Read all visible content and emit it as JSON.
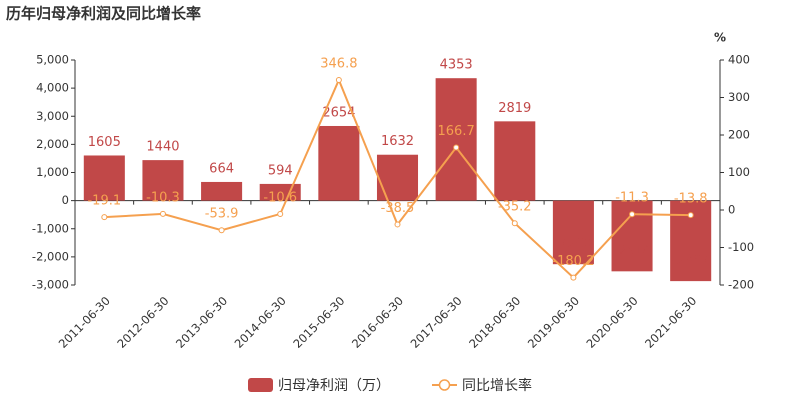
{
  "chart_data": {
    "type": "bar_line",
    "title": "历年归母净利润及同比增长率",
    "y2_label": "%",
    "categories": [
      "2011-06-30",
      "2012-06-30",
      "2013-06-30",
      "2014-06-30",
      "2015-06-30",
      "2016-06-30",
      "2017-06-30",
      "2018-06-30",
      "2019-06-30",
      "2020-06-30",
      "2021-06-30"
    ],
    "series": [
      {
        "name": "归母净利润（万）",
        "type": "bar",
        "color": "#c14848",
        "label_color": "#c14848",
        "values": [
          1605,
          1440,
          664,
          594,
          2654,
          1632,
          4353,
          2819,
          -2260,
          -2514,
          -2862
        ]
      },
      {
        "name": "同比增长率",
        "type": "line",
        "axis": "y2",
        "color": "#f5a04f",
        "label_color": "#f5a04f",
        "values": [
          -19.1,
          -10.3,
          -53.9,
          -10.6,
          346.8,
          -38.5,
          166.7,
          -35.2,
          -180.2,
          -11.3,
          -13.8
        ]
      }
    ],
    "ylim": [
      -3000,
      5000
    ],
    "yticks": [
      {
        "value": -3000,
        "label": "-3,000"
      },
      {
        "value": -2000,
        "label": "-2,000"
      },
      {
        "value": -1000,
        "label": "-1,000"
      },
      0,
      {
        "value": 1000,
        "label": "1,000"
      },
      {
        "value": 2000,
        "label": "2,000"
      },
      {
        "value": 3000,
        "label": "3,000"
      },
      {
        "value": 4000,
        "label": "4,000"
      },
      {
        "value": 5000,
        "label": "5,000"
      }
    ],
    "y2lim": [
      -200,
      400
    ],
    "y2ticks": [
      -200,
      -100,
      0,
      100,
      200,
      300,
      400
    ]
  }
}
